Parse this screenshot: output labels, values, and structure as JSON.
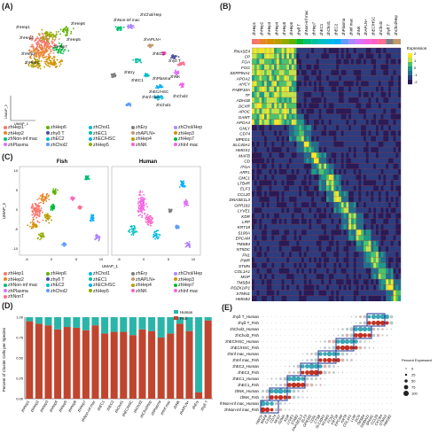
{
  "panels": {
    "A": "(A)",
    "B": "(B)",
    "C": "(C)",
    "D": "(D)",
    "E": "(E)"
  },
  "umap": {
    "xlabel": "UMAP_1",
    "ylabel": "UMAP_2"
  },
  "clusters": [
    "zhHep1",
    "zhHep2",
    "zhHep3",
    "zhHep4",
    "zhHep5",
    "zhHep6",
    "zhHep7",
    "zhNon-inf mac",
    "zhEC1",
    "zhEC2",
    "zhChol1",
    "zhEC/HSC",
    "zhChol2",
    "zhChol/Hep",
    "zhPlasma",
    "zhInf mac",
    "zhNK",
    "zhNonT",
    "zhEry",
    "zhAPLN+",
    "zhγδ T"
  ],
  "cluster_colors": [
    "#f8766d",
    "#e88526",
    "#d39200",
    "#b79f00",
    "#93aa00",
    "#5eb300",
    "#00ba38",
    "#00bf74",
    "#00c19f",
    "#00bfc4",
    "#00b9e3",
    "#00adfa",
    "#619cff",
    "#ae87ff",
    "#db72fb",
    "#f564e3",
    "#ff61c3",
    "#ff6c91",
    "#7f7f7f",
    "#c49a6c",
    "#4d4d9f"
  ],
  "panelA": {
    "labels": [
      "zhNon-inf mac",
      "zhChol/Hep",
      "zhHep6",
      "zhHep1",
      "zhHep4",
      "zhHep5",
      "zhHep7",
      "zhHep2",
      "zhHep3",
      "zhEry",
      "zhEC1",
      "zhAPLN+",
      "zhEC2",
      "zhγδ T",
      "zhEC/HSC",
      "zhPlasma",
      "zhNK",
      "zhChol1",
      "zhInf mac",
      "zhChol2"
    ],
    "legend": [
      "zhHep1",
      "zhHep6",
      "zhChol1",
      "zhEry",
      "zhChol/Hep",
      "zhHep2",
      "zhγδ T",
      "zhEC1",
      "zhAPLN+",
      "zhHep3",
      "zhNon-inf mac",
      "zhEC2",
      "zhEC/HSC",
      "zhHep4",
      "zhHep7",
      "zhPlasma",
      "zhChol2",
      "zhHep5",
      "zhNK",
      "zhInf mac"
    ]
  },
  "panelB": {
    "columns": [
      "zhHep1",
      "zhHep2",
      "zhHep3",
      "zhHep4",
      "zhHep5",
      "zhHep6",
      "zhγδ T",
      "zhNon-inf mac",
      "zhHep7",
      "zhEC1",
      "zhChol1",
      "zhEC2",
      "zhPlasma",
      "zhInf mac",
      "zhNK",
      "zhAPLN+",
      "zhEC/HSC",
      "zhChol2",
      "zhγδ T",
      "zhChol/Hep"
    ],
    "genes": [
      "RNASE4",
      "CP",
      "FGA",
      "FGG",
      "SERPINA1",
      "APOA2",
      "AHCY",
      "FABP10A",
      "TF",
      "ADH1B",
      "DCXR",
      "APOC",
      "GAMT",
      "APOA4",
      "GNLY",
      "CD74",
      "MPEG1",
      "SLC40A1",
      "HMOX1",
      "MAFB",
      "CD",
      "ITGA",
      "ARFL",
      "CMC1",
      "LTB4R",
      "ELF3",
      "CCL20",
      "DNASE1L3",
      "GPR182",
      "LYVE1",
      "KDR",
      "LRP",
      "KRT18",
      "S100A",
      "EPCAM",
      "TMSB4",
      "NT5DC",
      "FN1",
      "PWR",
      "STMN",
      "COL1A1",
      "MGP",
      "TMSB4",
      "PDZK1IP1",
      "STMN1",
      "HMGB2"
    ],
    "legend_title": "Expression",
    "legend_ticks": [
      "2",
      "1",
      "0",
      "-1",
      "-2"
    ]
  },
  "panelC": {
    "titles": [
      "Fish",
      "Human"
    ],
    "legend": [
      "zhHep1",
      "zhHep6",
      "zhChol1",
      "zhEry",
      "zhChol/Hep",
      "zhHep2",
      "zhγδ T",
      "zhEC1",
      "zhAPLN+",
      "zhHep3",
      "zhNon-inf mac",
      "zhEC2",
      "zhEC/HSC",
      "zhHep4",
      "zhHep7",
      "zhPlasma",
      "zhChol2",
      "zhHep5",
      "zhNK",
      "zhInf mac",
      "zhNonT"
    ],
    "xticks": [
      "-5",
      "0",
      "5",
      "10"
    ],
    "yticks": [
      "10",
      "5",
      "0",
      "-5",
      "-10"
    ]
  },
  "chart_data": [
    {
      "type": "bar",
      "panel": "D",
      "stacked": true,
      "ylabel": "Percent of Cluster Cells per Species",
      "ylim": [
        0,
        1
      ],
      "yticks": [
        "0.00",
        "0.25",
        "0.50",
        "0.75",
        "1.00"
      ],
      "legend": [
        "Human",
        "Fish"
      ],
      "legend_position": "top-right",
      "colors": {
        "Human": "#2bb5a9",
        "Fish": "#c0452f"
      },
      "categories": [
        "zhHep1",
        "zhHep2",
        "zhHep3",
        "zhHep4",
        "zhHep5",
        "zhHep6",
        "zhHep7",
        "zhNon-inf mac",
        "zhEC1",
        "zhEC2",
        "zhChol1",
        "zhEC/HSC",
        "zhChol2",
        "zhChol/Hep",
        "zhPlasma",
        "zhInf mac",
        "zhNK",
        "zhAPLN+",
        "zhEry",
        "zhγδ T"
      ],
      "series": [
        {
          "name": "Fish",
          "values": [
            0.95,
            0.92,
            0.9,
            0.85,
            0.88,
            0.87,
            0.84,
            0.9,
            0.8,
            0.82,
            0.82,
            0.78,
            0.85,
            0.83,
            0.75,
            0.8,
            0.92,
            0.83,
            0.08,
            0.96
          ]
        },
        {
          "name": "Human",
          "values": [
            0.05,
            0.08,
            0.1,
            0.15,
            0.12,
            0.13,
            0.16,
            0.1,
            0.2,
            0.18,
            0.18,
            0.22,
            0.15,
            0.17,
            0.25,
            0.2,
            0.08,
            0.17,
            0.92,
            0.04
          ]
        }
      ]
    }
  ],
  "panelE": {
    "rows": [
      "zhγδ T_Human",
      "zhγδ T_Fish",
      "zhChol2_Human",
      "zhChol2_Fish",
      "zhEC/HSC_Human",
      "zhEC/HSC_Fish",
      "zhInf mac_Human",
      "zhInf mac_Fish",
      "zhEC2_Human",
      "zhEC2_Fish",
      "zhEC1_Human",
      "zhEC1_Fish",
      "zhNK_Human",
      "zhNK_Fish",
      "zhNon-inf mac_Human",
      "zhNon-inf mac_Fish"
    ],
    "genes": [
      "HMOX",
      "MAFB",
      "C1QA",
      "CD74",
      "NKG7",
      "GZMA",
      "KDR",
      "LYVE1",
      "STAB2",
      "DNASE1L3",
      "ELF3",
      "GPR182",
      "CD5L",
      "CTSB",
      "SLC40A1",
      "VCAM1",
      "FCN2",
      "KRT18",
      "EPCAM",
      "KRT8",
      "COL1A1",
      "LUM",
      "DCN",
      "TMSB4",
      "S100A11",
      "SPARC",
      "CCL20",
      "CXCR4",
      "STMN1",
      "HMGB2"
    ],
    "size_legend_title": "Percent Expressed",
    "size_legend": [
      "0",
      "25",
      "50",
      "75",
      "100"
    ]
  }
}
